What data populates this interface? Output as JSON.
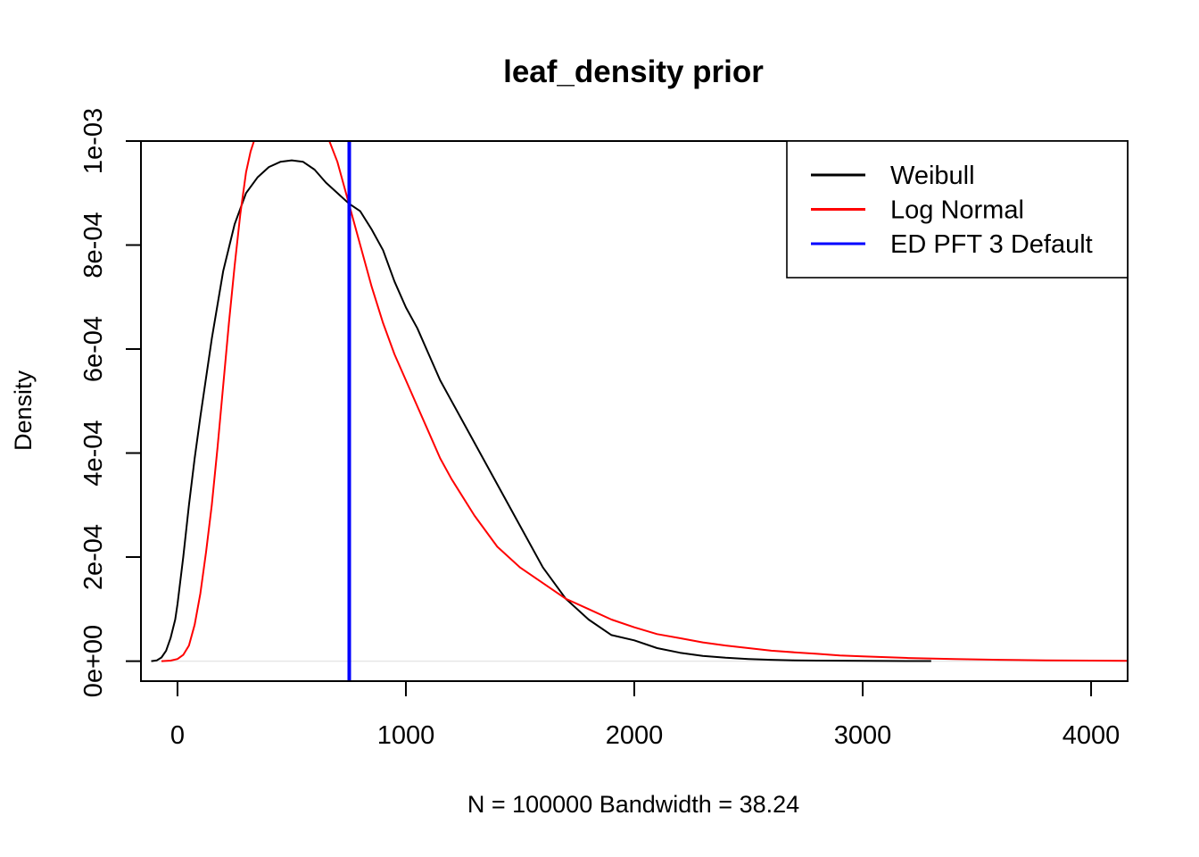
{
  "chart_data": {
    "type": "line",
    "title": "leaf_density prior",
    "xlabel": "N = 100000   Bandwidth = 38.24",
    "ylabel": "Density",
    "xlim": [
      -160,
      4160
    ],
    "ylim": [
      -3.85e-05,
      0.001
    ],
    "xticks": [
      0,
      1000,
      2000,
      3000,
      4000
    ],
    "xtick_labels": [
      "0",
      "1000",
      "2000",
      "3000",
      "4000"
    ],
    "yticks": [
      0,
      0.0002,
      0.0004,
      0.0006,
      0.0008,
      0.001
    ],
    "ytick_labels": [
      "0e+00",
      "2e-04",
      "4e-04",
      "6e-04",
      "8e-04",
      "1e-03"
    ],
    "grid": false,
    "legend_position": "top-right",
    "series": [
      {
        "name": "Weibull",
        "color": "#000000",
        "points": [
          [
            -115,
            0
          ],
          [
            -90,
            1.5e-06
          ],
          [
            -70,
            7e-06
          ],
          [
            -50,
            2e-05
          ],
          [
            -30,
            4.5e-05
          ],
          [
            -10,
            8e-05
          ],
          [
            0,
            0.00011
          ],
          [
            25,
            0.0002
          ],
          [
            50,
            0.0003
          ],
          [
            75,
            0.00039
          ],
          [
            100,
            0.00047
          ],
          [
            150,
            0.00062
          ],
          [
            200,
            0.00075
          ],
          [
            250,
            0.00084
          ],
          [
            300,
            0.0009
          ],
          [
            350,
            0.00093
          ],
          [
            400,
            0.00095
          ],
          [
            450,
            0.00096
          ],
          [
            500,
            0.000963
          ],
          [
            550,
            0.00096
          ],
          [
            600,
            0.000945
          ],
          [
            650,
            0.00092
          ],
          [
            700,
            0.0009
          ],
          [
            750,
            0.00088
          ],
          [
            800,
            0.000865
          ],
          [
            850,
            0.00083
          ],
          [
            900,
            0.00079
          ],
          [
            950,
            0.00073
          ],
          [
            1000,
            0.00068
          ],
          [
            1050,
            0.00064
          ],
          [
            1100,
            0.00059
          ],
          [
            1150,
            0.00054
          ],
          [
            1200,
            0.0005
          ],
          [
            1300,
            0.00042
          ],
          [
            1400,
            0.00034
          ],
          [
            1500,
            0.00026
          ],
          [
            1600,
            0.00018
          ],
          [
            1700,
            0.00012
          ],
          [
            1800,
            8e-05
          ],
          [
            1900,
            5e-05
          ],
          [
            2000,
            4e-05
          ],
          [
            2100,
            2.5e-05
          ],
          [
            2200,
            1.6e-05
          ],
          [
            2300,
            1e-05
          ],
          [
            2400,
            6.5e-06
          ],
          [
            2500,
            4e-06
          ],
          [
            2600,
            2.5e-06
          ],
          [
            2700,
            1.5e-06
          ],
          [
            2800,
            1e-06
          ],
          [
            2900,
            8e-07
          ],
          [
            3000,
            5e-07
          ],
          [
            3100,
            3e-07
          ],
          [
            3200,
            2e-07
          ],
          [
            3300,
            1e-07
          ]
        ]
      },
      {
        "name": "Log Normal",
        "color": "#ff0000",
        "points": [
          [
            -70,
            0
          ],
          [
            -30,
            1e-06
          ],
          [
            0,
            4e-06
          ],
          [
            25,
            1.2e-05
          ],
          [
            50,
            3e-05
          ],
          [
            75,
            7e-05
          ],
          [
            100,
            0.00013
          ],
          [
            125,
            0.00021
          ],
          [
            150,
            0.0003
          ],
          [
            175,
            0.00041
          ],
          [
            200,
            0.00053
          ],
          [
            225,
            0.00065
          ],
          [
            250,
            0.00076
          ],
          [
            275,
            0.00086
          ],
          [
            300,
            0.00094
          ],
          [
            320,
            0.00098
          ],
          [
            335,
            0.001
          ],
          [
            665,
            0.001
          ],
          [
            700,
            0.00096
          ],
          [
            750,
            0.00088
          ],
          [
            800,
            0.0008
          ],
          [
            850,
            0.00072
          ],
          [
            900,
            0.00065
          ],
          [
            950,
            0.00059
          ],
          [
            1000,
            0.00054
          ],
          [
            1050,
            0.00049
          ],
          [
            1100,
            0.00044
          ],
          [
            1150,
            0.00039
          ],
          [
            1200,
            0.00035
          ],
          [
            1300,
            0.00028
          ],
          [
            1400,
            0.00022
          ],
          [
            1500,
            0.00018
          ],
          [
            1600,
            0.00015
          ],
          [
            1700,
            0.00012
          ],
          [
            1800,
            0.0001
          ],
          [
            1900,
            8e-05
          ],
          [
            2000,
            6.5e-05
          ],
          [
            2100,
            5.2e-05
          ],
          [
            2200,
            4.4e-05
          ],
          [
            2300,
            3.6e-05
          ],
          [
            2400,
            3e-05
          ],
          [
            2500,
            2.5e-05
          ],
          [
            2600,
            2e-05
          ],
          [
            2700,
            1.7e-05
          ],
          [
            2800,
            1.4e-05
          ],
          [
            2900,
            1.1e-05
          ],
          [
            3000,
            9e-06
          ],
          [
            3200,
            6e-06
          ],
          [
            3400,
            4e-06
          ],
          [
            3600,
            2.5e-06
          ],
          [
            3800,
            1.5e-06
          ],
          [
            4000,
            1e-06
          ],
          [
            4160,
            7e-07
          ]
        ]
      }
    ],
    "vlines": [
      {
        "name": "ED PFT 3 Default",
        "x": 752,
        "color": "#0000ff"
      }
    ],
    "legend": [
      {
        "label": "Weibull",
        "color": "#000000"
      },
      {
        "label": "Log Normal",
        "color": "#ff0000"
      },
      {
        "label": "ED PFT 3 Default",
        "color": "#0000ff"
      }
    ]
  }
}
